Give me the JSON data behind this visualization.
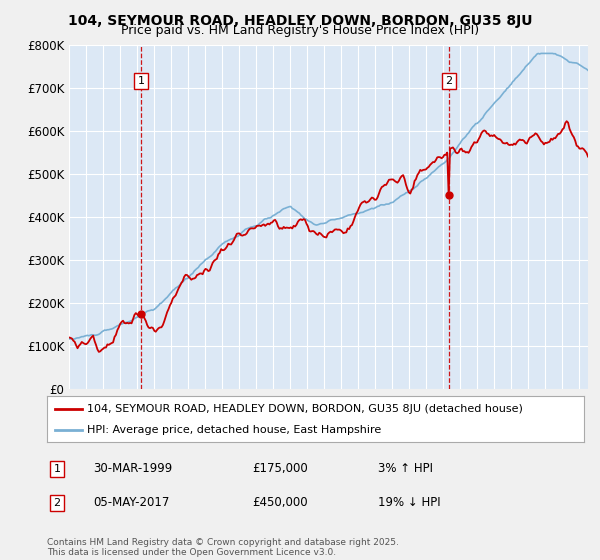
{
  "title_line1": "104, SEYMOUR ROAD, HEADLEY DOWN, BORDON, GU35 8JU",
  "title_line2": "Price paid vs. HM Land Registry's House Price Index (HPI)",
  "ylim": [
    0,
    800000
  ],
  "yticks": [
    0,
    100000,
    200000,
    300000,
    400000,
    500000,
    600000,
    700000,
    800000
  ],
  "ytick_labels": [
    "£0",
    "£100K",
    "£200K",
    "£300K",
    "£400K",
    "£500K",
    "£600K",
    "£700K",
    "£800K"
  ],
  "xlim_start": 1995.0,
  "xlim_end": 2025.5,
  "background_color": "#f0f0f0",
  "plot_bg_color": "#dce8f5",
  "grid_color": "#ffffff",
  "sale1_x": 1999.24,
  "sale1_y": 175000,
  "sale1_label": "1",
  "sale2_x": 2017.34,
  "sale2_y": 450000,
  "sale2_label": "2",
  "sale_color": "#cc0000",
  "hpi_color": "#7ab0d4",
  "legend_line1": "104, SEYMOUR ROAD, HEADLEY DOWN, BORDON, GU35 8JU (detached house)",
  "legend_line2": "HPI: Average price, detached house, East Hampshire",
  "annotation1_date": "30-MAR-1999",
  "annotation1_price": "£175,000",
  "annotation1_hpi": "3% ↑ HPI",
  "annotation2_date": "05-MAY-2017",
  "annotation2_price": "£450,000",
  "annotation2_hpi": "19% ↓ HPI",
  "footer": "Contains HM Land Registry data © Crown copyright and database right 2025.\nThis data is licensed under the Open Government Licence v3.0.",
  "title_fontsize": 10,
  "subtitle_fontsize": 9
}
